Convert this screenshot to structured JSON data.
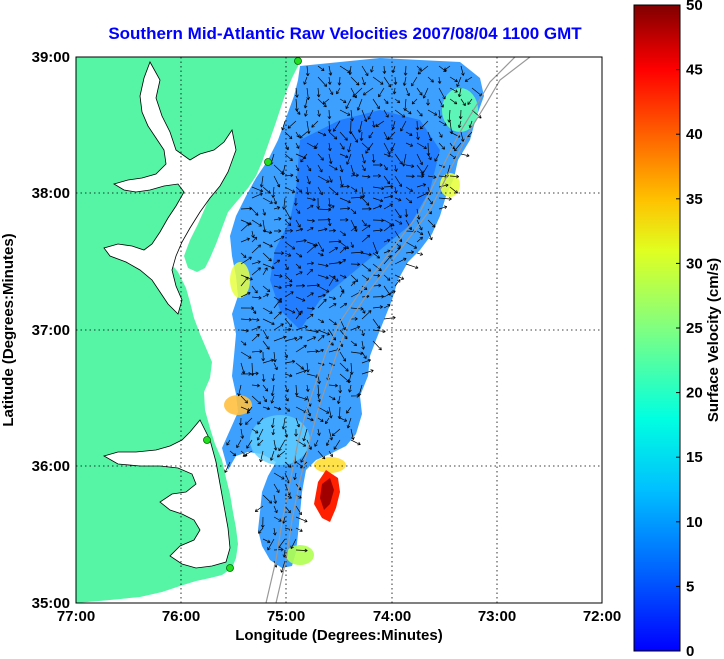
{
  "title": "Southern Mid-Atlantic Raw Velocities 2007/08/04 1100 GMT",
  "map": {
    "xlabel": "Longitude (Degrees:Minutes)",
    "ylabel": "Latitude (Degrees:Minutes)",
    "lon_ticks": [
      "77:00",
      "76:00",
      "75:00",
      "74:00",
      "73:00",
      "72:00"
    ],
    "lat_ticks": [
      "35:00",
      "36:00",
      "37:00",
      "38:00",
      "39:00"
    ],
    "lon_range": [
      -77,
      -72
    ],
    "lat_range": [
      35,
      39
    ],
    "land_color": "#55f5a5",
    "ocean_color": "#ffffff",
    "station_color": "#22dd22"
  },
  "colorbar": {
    "label": "Surface Velocity (cm/s)",
    "ticks": [
      "0",
      "5",
      "10",
      "15",
      "20",
      "25",
      "30",
      "35",
      "40",
      "45",
      "50"
    ],
    "range": [
      0,
      50
    ],
    "colormap": "jet"
  }
}
